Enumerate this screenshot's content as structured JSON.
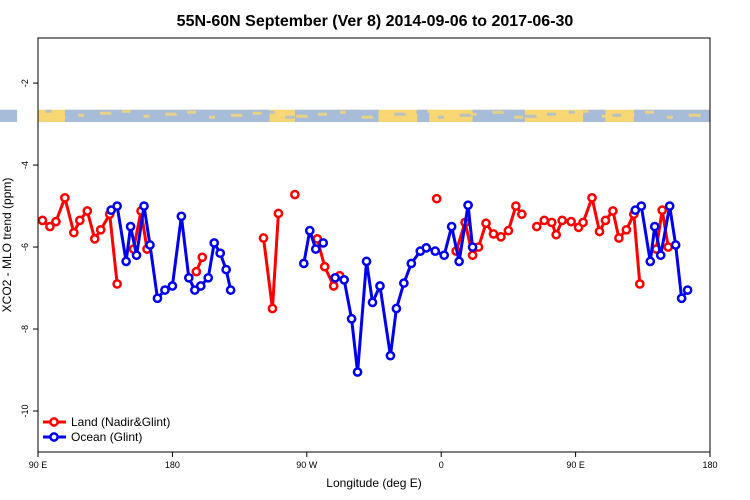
{
  "chart_data": {
    "type": "line",
    "title": "55N-60N September (Ver 8)   2014-09-06 to 2017-06-30",
    "xlabel": "Longitude (deg E)",
    "ylabel": "XCO2 - MLO trend (ppm)",
    "xlim": [
      90,
      540
    ],
    "ylim": [
      -11,
      -0.9
    ],
    "x_ticks": [
      {
        "value": 90,
        "label": "90 E"
      },
      {
        "value": 180,
        "label": "180"
      },
      {
        "value": 270,
        "label": "90 W"
      },
      {
        "value": 360,
        "label": "0"
      },
      {
        "value": 450,
        "label": "90 E"
      },
      {
        "value": 540,
        "label": "180"
      }
    ],
    "y_ticks": [
      {
        "value": -2,
        "label": "-2"
      },
      {
        "value": -4,
        "label": "-4"
      },
      {
        "value": -6,
        "label": "-6"
      },
      {
        "value": -8,
        "label": "-8"
      },
      {
        "value": -10,
        "label": "-10"
      }
    ],
    "map_strip": {
      "y_min": -2.95,
      "y_max": -2.65,
      "land_color": "#f7d774",
      "ocean_color": "#a6bcd8"
    },
    "series": [
      {
        "name": "Land (Nadir&Glint)",
        "color": "#ff0000",
        "segments": [
          [
            [
              93,
              -5.35
            ],
            [
              98,
              -5.5
            ],
            [
              102,
              -5.38
            ],
            [
              108,
              -4.8
            ],
            [
              114,
              -5.65
            ],
            [
              118,
              -5.35
            ],
            [
              123,
              -5.12
            ],
            [
              128,
              -5.8
            ],
            [
              132,
              -5.58
            ],
            [
              138,
              -5.2
            ],
            [
              143,
              -6.9
            ]
          ],
          [
            [
              154,
              -6.05
            ],
            [
              159,
              -5.12
            ],
            [
              163,
              -6.05
            ]
          ],
          [
            [
              196,
              -6.6
            ],
            [
              200,
              -6.25
            ]
          ],
          [
            [
              241,
              -5.78
            ],
            [
              247,
              -7.5
            ],
            [
              251,
              -5.18
            ]
          ],
          [
            [
              262,
              -4.72
            ]
          ],
          [
            [
              277,
              -5.8
            ],
            [
              282,
              -6.48
            ],
            [
              288,
              -6.95
            ],
            [
              292,
              -6.7
            ]
          ],
          [
            [
              357,
              -4.82
            ]
          ],
          [
            [
              370,
              -6.1
            ],
            [
              376,
              -5.4
            ],
            [
              381,
              -6.2
            ],
            [
              385,
              -6.0
            ],
            [
              390,
              -5.42
            ],
            [
              395,
              -5.68
            ],
            [
              400,
              -5.75
            ],
            [
              405,
              -5.6
            ],
            [
              410,
              -5.0
            ],
            [
              414,
              -5.2
            ]
          ],
          [
            [
              424,
              -5.5
            ],
            [
              429,
              -5.35
            ],
            [
              434,
              -5.4
            ],
            [
              437,
              -5.7
            ],
            [
              441,
              -5.35
            ],
            [
              447,
              -5.38
            ],
            [
              452,
              -5.52
            ],
            [
              455,
              -5.4
            ],
            [
              461,
              -4.8
            ],
            [
              466,
              -5.62
            ],
            [
              470,
              -5.35
            ],
            [
              475,
              -5.12
            ],
            [
              479,
              -5.78
            ],
            [
              484,
              -5.58
            ],
            [
              489,
              -5.2
            ],
            [
              493,
              -6.9
            ]
          ],
          [
            [
              504,
              -6.05
            ],
            [
              508,
              -5.1
            ],
            [
              512,
              -6.0
            ]
          ]
        ]
      },
      {
        "name": "Ocean (Glint)",
        "color": "#0000ee",
        "segments": [
          [
            [
              139,
              -5.1
            ],
            [
              143,
              -5.0
            ],
            [
              149,
              -6.35
            ],
            [
              152,
              -5.5
            ],
            [
              156,
              -6.2
            ],
            [
              161,
              -5.0
            ],
            [
              165,
              -5.95
            ],
            [
              170,
              -7.25
            ],
            [
              175,
              -7.05
            ],
            [
              180,
              -6.95
            ],
            [
              186,
              -5.25
            ],
            [
              191,
              -6.75
            ],
            [
              195,
              -7.05
            ],
            [
              199,
              -6.95
            ],
            [
              204,
              -6.75
            ],
            [
              208,
              -5.9
            ],
            [
              212,
              -6.15
            ],
            [
              216,
              -6.55
            ],
            [
              219,
              -7.05
            ]
          ],
          [
            [
              268,
              -6.4
            ],
            [
              272,
              -5.6
            ],
            [
              276,
              -6.05
            ],
            [
              281,
              -5.9
            ]
          ],
          [
            [
              289,
              -6.75
            ],
            [
              295,
              -6.8
            ],
            [
              300,
              -7.75
            ],
            [
              304,
              -9.05
            ],
            [
              310,
              -6.35
            ],
            [
              314,
              -7.35
            ],
            [
              319,
              -6.95
            ],
            [
              326,
              -8.65
            ],
            [
              330,
              -7.5
            ],
            [
              335,
              -6.88
            ],
            [
              340,
              -6.4
            ],
            [
              346,
              -6.1
            ],
            [
              350,
              -6.02
            ],
            [
              356,
              -6.1
            ],
            [
              362,
              -6.2
            ],
            [
              367,
              -5.5
            ],
            [
              372,
              -6.35
            ],
            [
              378,
              -4.98
            ],
            [
              381,
              -6.0
            ]
          ],
          [
            [
              490,
              -5.1
            ],
            [
              494,
              -5.0
            ],
            [
              500,
              -6.35
            ],
            [
              503,
              -5.5
            ],
            [
              507,
              -6.2
            ],
            [
              513,
              -5.0
            ],
            [
              517,
              -5.95
            ],
            [
              521,
              -7.25
            ],
            [
              525,
              -7.05
            ]
          ]
        ]
      }
    ],
    "legend": {
      "position": "bottom-left"
    }
  }
}
